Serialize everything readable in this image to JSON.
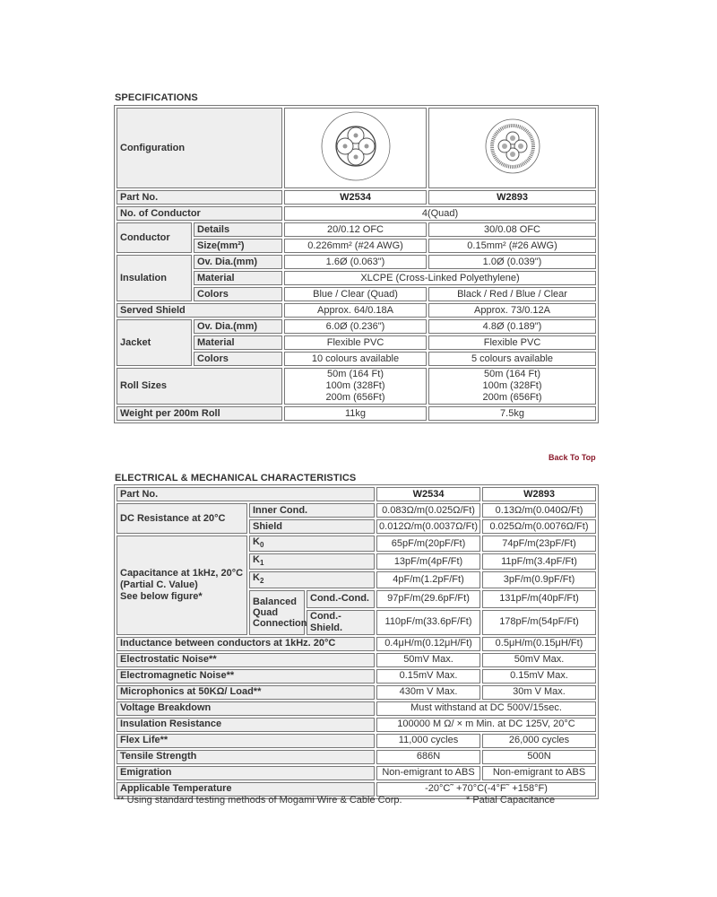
{
  "specifications": {
    "title": "SPECIFICATIONS",
    "configuration_label": "Configuration",
    "part_no_label": "Part No.",
    "parts": [
      "W2534",
      "W2893"
    ],
    "conductor_count_label": "No. of Conductor",
    "conductor_count": "4(Quad)",
    "conductor_label": "Conductor",
    "details_label": "Details",
    "details": [
      "20/0.12 OFC",
      "30/0.08 OFC"
    ],
    "size_label": "Size(mm²)",
    "size": [
      "0.226mm² (#24 AWG)",
      "0.15mm² (#26 AWG)"
    ],
    "insulation_label": "Insulation",
    "ov_dia_label": "Ov. Dia.(mm)",
    "ins_dia": [
      "1.6Ø (0.063\")",
      "1.0Ø (0.039\")"
    ],
    "material_label": "Material",
    "ins_material": "XLCPE (Cross-Linked Polyethylene)",
    "colors_label": "Colors",
    "ins_colors": [
      "Blue / Clear (Quad)",
      "Black / Red / Blue / Clear"
    ],
    "shield_label": "Served Shield",
    "shield": [
      "Approx. 64/0.18A",
      "Approx. 73/0.12A"
    ],
    "jacket_label": "Jacket",
    "jacket_dia": [
      "6.0Ø (0.236\")",
      "4.8Ø (0.189\")"
    ],
    "jacket_material": [
      "Flexible PVC",
      "Flexible PVC"
    ],
    "jacket_colors": [
      "10 colours available",
      "5 colours available"
    ],
    "roll_label": "Roll Sizes",
    "rolls": [
      [
        "50m (164 Ft)",
        "100m (328Ft)",
        "200m (656Ft)"
      ],
      [
        "50m (164 Ft)",
        "100m (328Ft)",
        "200m (656Ft)"
      ]
    ],
    "weight_label": "Weight per 200m Roll",
    "weight": [
      "11kg",
      "7.5kg"
    ]
  },
  "back_to_top": "Back To Top",
  "electrical": {
    "title": "ELECTRICAL & MECHANICAL CHARACTERISTICS",
    "part_no_label": "Part No.",
    "parts": [
      "W2534",
      "W2893"
    ],
    "dc_label": "DC Resistance at 20°C",
    "inner_label": "Inner Cond.",
    "inner": [
      "0.083Ω/m(0.025Ω/Ft)",
      "0.13Ω/m(0.040Ω/Ft)"
    ],
    "shield_label": "Shield",
    "shield": [
      "0.012Ω/m(0.0037Ω/Ft)",
      "0.025Ω/m(0.0076Ω/Ft)"
    ],
    "cap_label": [
      "Capacitance at 1kHz, 20°C",
      "(Partial C. Value)",
      "See below figure*"
    ],
    "k0_label": "K",
    "k0_sub": "0",
    "k0": [
      "65pF/m(20pF/Ft)",
      "74pF/m(23pF/Ft)"
    ],
    "k1_label": "K",
    "k1_sub": "1",
    "k1": [
      "13pF/m(4pF/Ft)",
      "11pF/m(3.4pF/Ft)"
    ],
    "k2_label": "K",
    "k2_sub": "2",
    "k2": [
      "4pF/m(1.2pF/Ft)",
      "3pF/m(0.9pF/Ft)"
    ],
    "bq_label": "Balanced Quad Connection",
    "cc_label": "Cond.-Cond.",
    "cc": [
      "97pF/m(29.6pF/Ft)",
      "131pF/m(40pF/Ft)"
    ],
    "cs_label": "Cond.-Shield.",
    "cs": [
      "110pF/m(33.6pF/Ft)",
      "178pF/m(54pF/Ft)"
    ],
    "rows": [
      {
        "label": "Inductance between conductors at 1kHz. 20°C",
        "values": [
          "0.4μH/m(0.12μH/Ft)",
          "0.5μH/m(0.15μH/Ft)"
        ]
      },
      {
        "label": "Electrostatic Noise**",
        "values": [
          "50mV Max.",
          "50mV Max."
        ]
      },
      {
        "label": "Electromagnetic Noise**",
        "values": [
          "0.15mV Max.",
          "0.15mV Max."
        ]
      },
      {
        "label": "Microphonics at 50KΩ/ Load**",
        "values": [
          "430m V Max.",
          "30m V Max."
        ]
      },
      {
        "label": "Voltage Breakdown",
        "value": "Must withstand at DC 500V/15sec."
      },
      {
        "label": "Insulation Resistance",
        "value": "100000 M Ω/ × m Min. at DC 125V, 20°C"
      },
      {
        "label": "Flex Life**",
        "values": [
          "11,000 cycles",
          "26,000 cycles"
        ]
      },
      {
        "label": "Tensile Strength",
        "values": [
          "686N",
          "500N"
        ]
      },
      {
        "label": "Emigration",
        "values": [
          "Non-emigrant to ABS",
          "Non-emigrant to ABS"
        ]
      },
      {
        "label": "Applicable Temperature",
        "value": "-20°C˜ +70°C(-4°F˜ +158°F)"
      }
    ]
  },
  "footnotes": {
    "testing": "** Using standard testing methods of Mogami Wire & Cable Corp.",
    "partial": "* Patial Capacitance"
  },
  "colors": {
    "label_bg": "#eeeeee",
    "border": "#777777",
    "link": "#8b1a2b"
  }
}
